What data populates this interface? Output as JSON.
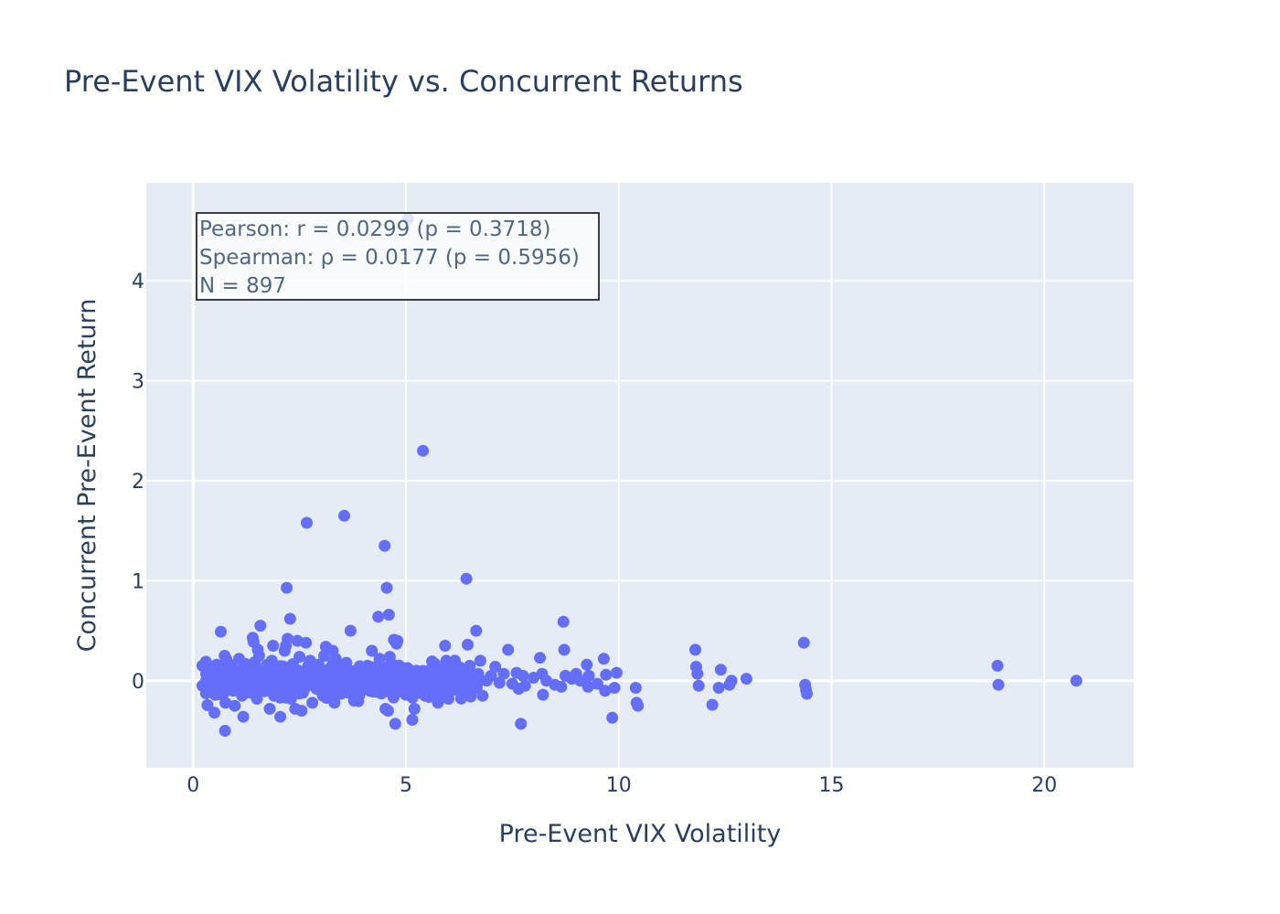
{
  "chart_data": {
    "type": "scatter",
    "title": "Pre-Event VIX Volatility vs. Concurrent Returns",
    "xlabel": "Pre-Event VIX Volatility",
    "ylabel": "Concurrent Pre-Event Return",
    "xlim": [
      -1.1,
      22.1
    ],
    "ylim": [
      -0.87,
      4.98
    ],
    "x_ticks": [
      0,
      5,
      10,
      15,
      20
    ],
    "x_tick_labels": [
      "0",
      "5",
      "10",
      "15",
      "20"
    ],
    "y_ticks": [
      0,
      1,
      2,
      3,
      4
    ],
    "y_tick_labels": [
      "0",
      "1",
      "2",
      "3",
      "4"
    ],
    "grid": true,
    "marker_color": "#636efa",
    "plot_bg": "#e5ecf6",
    "annotation": {
      "lines": [
        "Pearson: r = 0.0299 (p = 0.3718)",
        "Spearman: ρ = 0.0177 (p = 0.5956)",
        "N = 897"
      ],
      "position": "top-left"
    },
    "points": [
      [
        0.22,
        0.15
      ],
      [
        0.22,
        -0.05
      ],
      [
        0.35,
        0.05
      ],
      [
        0.45,
        0.09
      ],
      [
        0.5,
        -0.32
      ],
      [
        0.52,
        -0.14
      ],
      [
        0.55,
        0.16
      ],
      [
        0.58,
        -0.08
      ],
      [
        0.6,
        0.02
      ],
      [
        0.65,
        0.49
      ],
      [
        0.7,
        0.1
      ],
      [
        0.72,
        -0.12
      ],
      [
        0.74,
        0.25
      ],
      [
        0.75,
        -0.5
      ],
      [
        0.76,
        -0.22
      ],
      [
        0.8,
        0.05
      ],
      [
        0.85,
        -0.03
      ],
      [
        0.9,
        0.12
      ],
      [
        0.95,
        -0.1
      ],
      [
        0.98,
        -0.25
      ],
      [
        1.02,
        0.06
      ],
      [
        1.05,
        -0.07
      ],
      [
        1.08,
        0.22
      ],
      [
        1.12,
        0.02
      ],
      [
        1.15,
        -0.15
      ],
      [
        1.18,
        -0.36
      ],
      [
        1.2,
        0.1
      ],
      [
        1.25,
        -0.04
      ],
      [
        1.3,
        0.08
      ],
      [
        1.35,
        -0.12
      ],
      [
        1.4,
        0.43
      ],
      [
        1.42,
        0.39
      ],
      [
        1.45,
        0.18
      ],
      [
        1.48,
        0.05
      ],
      [
        1.5,
        -0.18
      ],
      [
        1.52,
        0.31
      ],
      [
        1.55,
        0.25
      ],
      [
        1.58,
        0.55
      ],
      [
        1.6,
        -0.02
      ],
      [
        1.65,
        0.1
      ],
      [
        1.7,
        -0.08
      ],
      [
        1.75,
        0.14
      ],
      [
        1.8,
        -0.28
      ],
      [
        1.82,
        0.0
      ],
      [
        1.85,
        0.2
      ],
      [
        1.88,
        0.35
      ],
      [
        1.9,
        -0.15
      ],
      [
        1.95,
        0.07
      ],
      [
        2.0,
        -0.05
      ],
      [
        2.05,
        -0.36
      ],
      [
        2.08,
        0.12
      ],
      [
        2.1,
        -0.1
      ],
      [
        2.15,
        0.3
      ],
      [
        2.18,
        0.35
      ],
      [
        2.2,
        0.93
      ],
      [
        2.22,
        0.42
      ],
      [
        2.25,
        0.03
      ],
      [
        2.28,
        0.62
      ],
      [
        2.3,
        -0.18
      ],
      [
        2.35,
        0.15
      ],
      [
        2.4,
        -0.28
      ],
      [
        2.45,
        0.4
      ],
      [
        2.48,
        0.08
      ],
      [
        2.5,
        0.24
      ],
      [
        2.55,
        -0.3
      ],
      [
        2.58,
        -0.12
      ],
      [
        2.6,
        0.05
      ],
      [
        2.65,
        0.38
      ],
      [
        2.67,
        1.58
      ],
      [
        2.7,
        -0.04
      ],
      [
        2.75,
        0.2
      ],
      [
        2.8,
        -0.22
      ],
      [
        2.85,
        0.1
      ],
      [
        2.9,
        -0.08
      ],
      [
        2.95,
        0.16
      ],
      [
        3.0,
        0.02
      ],
      [
        3.05,
        -0.15
      ],
      [
        3.08,
        0.25
      ],
      [
        3.12,
        0.34
      ],
      [
        3.15,
        -0.05
      ],
      [
        3.2,
        0.12
      ],
      [
        3.25,
        -0.18
      ],
      [
        3.28,
        0.3
      ],
      [
        3.3,
        0.06
      ],
      [
        3.32,
        -0.22
      ],
      [
        3.35,
        0.22
      ],
      [
        3.4,
        -0.1
      ],
      [
        3.45,
        0.08
      ],
      [
        3.5,
        0.14
      ],
      [
        3.55,
        1.65
      ],
      [
        3.58,
        -0.03
      ],
      [
        3.6,
        0.18
      ],
      [
        3.65,
        -0.12
      ],
      [
        3.7,
        0.5
      ],
      [
        3.75,
        0.05
      ],
      [
        3.8,
        -0.08
      ],
      [
        3.85,
        0.1
      ],
      [
        3.9,
        -0.15
      ],
      [
        3.95,
        0.02
      ],
      [
        4.0,
        0.08
      ],
      [
        4.05,
        -0.05
      ],
      [
        4.1,
        0.15
      ],
      [
        4.15,
        -0.1
      ],
      [
        4.2,
        0.3
      ],
      [
        4.25,
        0.04
      ],
      [
        4.3,
        -0.07
      ],
      [
        4.35,
        0.64
      ],
      [
        4.38,
        0.22
      ],
      [
        4.42,
        0.1
      ],
      [
        4.45,
        -0.04
      ],
      [
        4.5,
        1.35
      ],
      [
        4.52,
        -0.28
      ],
      [
        4.55,
        0.93
      ],
      [
        4.58,
        -0.3
      ],
      [
        4.6,
        0.66
      ],
      [
        4.62,
        0.24
      ],
      [
        4.65,
        0.05
      ],
      [
        4.7,
        -0.15
      ],
      [
        4.72,
        0.41
      ],
      [
        4.75,
        -0.43
      ],
      [
        4.78,
        0.37
      ],
      [
        4.8,
        0.4
      ],
      [
        4.85,
        -0.05
      ],
      [
        4.9,
        0.12
      ],
      [
        4.95,
        0.02
      ],
      [
        5.0,
        -0.14
      ],
      [
        5.05,
        4.62
      ],
      [
        5.1,
        0.08
      ],
      [
        5.15,
        -0.39
      ],
      [
        5.2,
        -0.28
      ],
      [
        5.25,
        0.1
      ],
      [
        5.3,
        -0.12
      ],
      [
        5.35,
        0.03
      ],
      [
        5.4,
        2.3
      ],
      [
        5.45,
        -0.15
      ],
      [
        5.5,
        0.06
      ],
      [
        5.55,
        -0.04
      ],
      [
        5.6,
        0.1
      ],
      [
        5.65,
        -0.08
      ],
      [
        5.7,
        0.02
      ],
      [
        5.75,
        -0.22
      ],
      [
        5.8,
        0.05
      ],
      [
        5.85,
        -0.1
      ],
      [
        5.9,
        0.12
      ],
      [
        5.92,
        0.35
      ],
      [
        5.95,
        0.2
      ],
      [
        6.0,
        -0.18
      ],
      [
        6.05,
        0.1
      ],
      [
        6.1,
        -0.05
      ],
      [
        6.2,
        0.02
      ],
      [
        6.3,
        0.08
      ],
      [
        6.4,
        -0.12
      ],
      [
        6.42,
        1.02
      ],
      [
        6.45,
        0.36
      ],
      [
        6.5,
        0.15
      ],
      [
        6.6,
        -0.02
      ],
      [
        6.65,
        0.5
      ],
      [
        6.7,
        0.07
      ],
      [
        6.75,
        0.2
      ],
      [
        6.8,
        -0.15
      ],
      [
        6.9,
        0.0
      ],
      [
        7.0,
        0.05
      ],
      [
        7.1,
        0.14
      ],
      [
        7.2,
        -0.02
      ],
      [
        7.3,
        0.07
      ],
      [
        7.4,
        0.31
      ],
      [
        7.5,
        -0.03
      ],
      [
        7.6,
        0.08
      ],
      [
        7.65,
        -0.08
      ],
      [
        7.7,
        -0.43
      ],
      [
        7.75,
        0.05
      ],
      [
        7.8,
        -0.05
      ],
      [
        8.0,
        0.03
      ],
      [
        8.15,
        0.23
      ],
      [
        8.2,
        0.07
      ],
      [
        8.22,
        -0.14
      ],
      [
        8.3,
        0.0
      ],
      [
        8.5,
        -0.04
      ],
      [
        8.65,
        -0.06
      ],
      [
        8.7,
        0.59
      ],
      [
        8.72,
        0.31
      ],
      [
        8.75,
        0.05
      ],
      [
        8.9,
        0.02
      ],
      [
        9.0,
        0.07
      ],
      [
        9.1,
        0.0
      ],
      [
        9.25,
        0.16
      ],
      [
        9.28,
        -0.06
      ],
      [
        9.3,
        0.05
      ],
      [
        9.5,
        -0.03
      ],
      [
        9.65,
        0.22
      ],
      [
        9.68,
        -0.1
      ],
      [
        9.7,
        0.06
      ],
      [
        9.85,
        -0.37
      ],
      [
        9.9,
        -0.07
      ],
      [
        9.95,
        0.08
      ],
      [
        10.4,
        -0.07
      ],
      [
        10.42,
        -0.22
      ],
      [
        10.45,
        -0.25
      ],
      [
        11.8,
        0.31
      ],
      [
        11.82,
        0.14
      ],
      [
        11.85,
        0.07
      ],
      [
        11.88,
        -0.05
      ],
      [
        12.2,
        -0.24
      ],
      [
        12.35,
        -0.07
      ],
      [
        12.4,
        0.11
      ],
      [
        12.6,
        -0.04
      ],
      [
        12.65,
        0.0
      ],
      [
        13.0,
        0.02
      ],
      [
        14.35,
        0.38
      ],
      [
        14.38,
        -0.04
      ],
      [
        14.4,
        -0.09
      ],
      [
        14.42,
        -0.13
      ],
      [
        18.9,
        0.15
      ],
      [
        18.92,
        -0.04
      ],
      [
        20.75,
        0.0
      ]
    ]
  }
}
